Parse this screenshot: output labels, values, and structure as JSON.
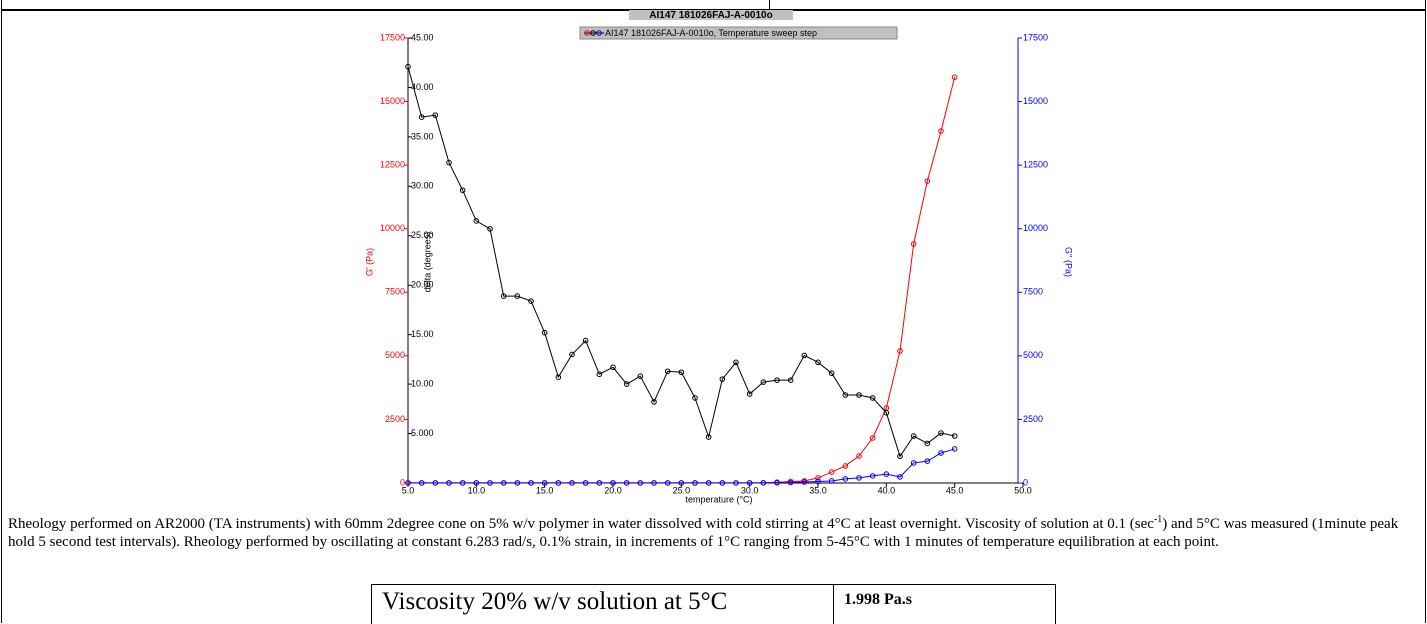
{
  "chart_data": {
    "type": "line",
    "title": "AI147 181026FAJ-A-0010o",
    "legend": "AI147 181026FAJ-A-0010o, Temperature sweep step",
    "xlabel": "temperature (°C)",
    "ylabel": "G' (Pa)",
    "y2label": "G'' (Pa)",
    "y3label": "delta (degrees)",
    "x": [
      5,
      6,
      7,
      8,
      9,
      10,
      11,
      12,
      13,
      14,
      15,
      16,
      17,
      18,
      19,
      20,
      21,
      22,
      23,
      24,
      25,
      26,
      27,
      28,
      29,
      30,
      31,
      32,
      33,
      34,
      35,
      36,
      37,
      38,
      39,
      40,
      41,
      42,
      43,
      44,
      45
    ],
    "xlim": [
      5,
      50
    ],
    "xticks": [
      {
        "value": 5,
        "label": "5.0"
      },
      {
        "value": 10,
        "label": "10.0"
      },
      {
        "value": 15,
        "label": "15.0"
      },
      {
        "value": 20,
        "label": "20.0"
      },
      {
        "value": 25,
        "label": "25.0"
      },
      {
        "value": 30,
        "label": "30.0"
      },
      {
        "value": 35,
        "label": "35.0"
      },
      {
        "value": 40,
        "label": "40.0"
      },
      {
        "value": 45,
        "label": "45.0"
      },
      {
        "value": 50,
        "label": "50.0"
      }
    ],
    "ylim": [
      0,
      17500
    ],
    "yticks": [
      0,
      2500,
      5000,
      7500,
      10000,
      12500,
      15000,
      17500
    ],
    "y2lim": [
      0,
      17500
    ],
    "y2ticks": [
      0,
      2500,
      5000,
      7500,
      10000,
      12500,
      15000,
      17500
    ],
    "y3lim": [
      0,
      45
    ],
    "y3ticks": [
      {
        "value": 5,
        "label": "5.000"
      },
      {
        "value": 10,
        "label": "10.00"
      },
      {
        "value": 15,
        "label": "15.00"
      },
      {
        "value": 20,
        "label": "20.00"
      },
      {
        "value": 25,
        "label": "25.00"
      },
      {
        "value": 30,
        "label": "30.00"
      },
      {
        "value": 35,
        "label": "35.00"
      },
      {
        "value": 40,
        "label": "40.00"
      },
      {
        "value": 45,
        "label": "45.00"
      }
    ],
    "series": [
      {
        "color": "#ff0000",
        "axis": "y",
        "values": [
          5,
          5,
          5,
          5,
          5,
          5,
          5,
          5,
          5,
          5,
          5,
          5,
          5,
          5,
          5,
          5,
          5,
          5,
          5,
          5,
          5,
          5,
          5,
          5,
          5,
          5,
          10,
          30,
          60,
          80,
          200,
          430,
          670,
          1060,
          1770,
          2950,
          5190,
          9400,
          11870,
          13840,
          15960
        ]
      },
      {
        "color": "#0000ff",
        "axis": "y2",
        "values": [
          3,
          3,
          3,
          3,
          3,
          3,
          3,
          3,
          3,
          3,
          3,
          3,
          3,
          3,
          3,
          3,
          3,
          3,
          3,
          3,
          3,
          3,
          3,
          3,
          3,
          3,
          5,
          10,
          20,
          40,
          60,
          80,
          160,
          200,
          280,
          350,
          240,
          790,
          860,
          1180,
          1340
        ]
      },
      {
        "color": "#000000",
        "axis": "y3",
        "values": [
          42.1,
          37.0,
          37.2,
          32.4,
          29.6,
          26.5,
          25.7,
          18.9,
          18.9,
          18.4,
          15.2,
          10.7,
          13.0,
          14.4,
          11.0,
          11.7,
          10.0,
          10.8,
          8.2,
          11.3,
          11.2,
          8.6,
          4.65,
          10.5,
          12.2,
          9.0,
          10.2,
          10.4,
          10.4,
          12.9,
          12.2,
          11.1,
          8.9,
          8.9,
          8.6,
          7.1,
          2.7,
          4.75,
          4.0,
          5.05,
          4.75
        ]
      }
    ]
  },
  "notes": {
    "part1": "Rheology  performed on AR2000 (TA instruments) with 60mm 2degree cone on 5% w/v polymer in water dissolved with cold stirring at 4°C at least overnight. Viscosity of solution at 0.1 (sec",
    "sup": "-1",
    "part2": ") and 5°C was measured (1minute peak hold 5 second test intervals). Rheology performed by oscillating at constant 6.283 rad/s, 0.1% strain, in increments of 1°C ranging from 5-45°C with 1 minutes of temperature equilibration at each point."
  },
  "table": {
    "rows": [
      [
        "Viscosity 20% w/v solution at 5°C",
        "1.998 Pa.s"
      ]
    ]
  }
}
